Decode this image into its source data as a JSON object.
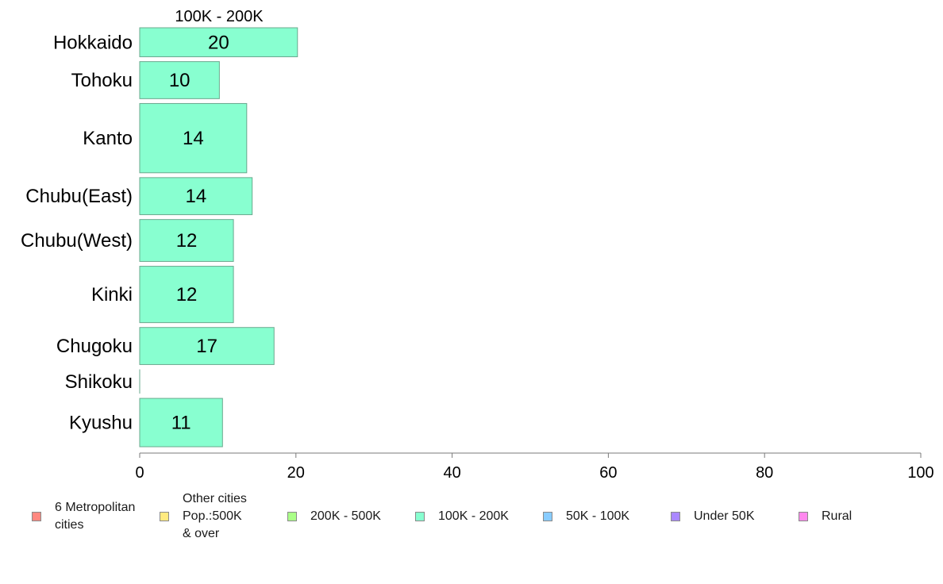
{
  "chart_data": {
    "type": "bar",
    "orientation": "horizontal",
    "title": "100K - 200K",
    "categories": [
      "Hokkaido",
      "Tohoku",
      "Kanto",
      "Chubu(East)",
      "Chubu(West)",
      "Kinki",
      "Chugoku",
      "Shikoku",
      "Kyushu"
    ],
    "values": [
      20.2,
      10.2,
      13.7,
      14.4,
      12.0,
      12.0,
      17.2,
      0,
      10.6
    ],
    "data_labels": [
      "20",
      "10",
      "14",
      "14",
      "12",
      "12",
      "17",
      "",
      "11"
    ],
    "bar_width_weights": [
      0.9,
      1.15,
      2.15,
      1.15,
      1.3,
      1.75,
      1.15,
      0.75,
      1.5
    ],
    "xlim": [
      0,
      100
    ],
    "xticks": [
      "0",
      "20",
      "40",
      "60",
      "80",
      "100"
    ],
    "xlabel": "",
    "ylabel": "",
    "grid": false,
    "bar_color": "#88ffd0",
    "bar_edge_color": "#6aa88e",
    "legend": {
      "position": "bottom",
      "entries": [
        {
          "label": "6 Metropolitan\n cities",
          "color": "#ff8880"
        },
        {
          "label": "Other cities\nPop.:500K\n & over",
          "color": "#ffea80"
        },
        {
          "label": "200K - 500K",
          "color": "#aaff88"
        },
        {
          "label": "100K - 200K",
          "color": "#88ffd0"
        },
        {
          "label": "50K - 100K",
          "color": "#88ccff"
        },
        {
          "label": "Under 50K",
          "color": "#aa88ff"
        },
        {
          "label": "Rural",
          "color": "#ff88ee"
        }
      ]
    }
  }
}
